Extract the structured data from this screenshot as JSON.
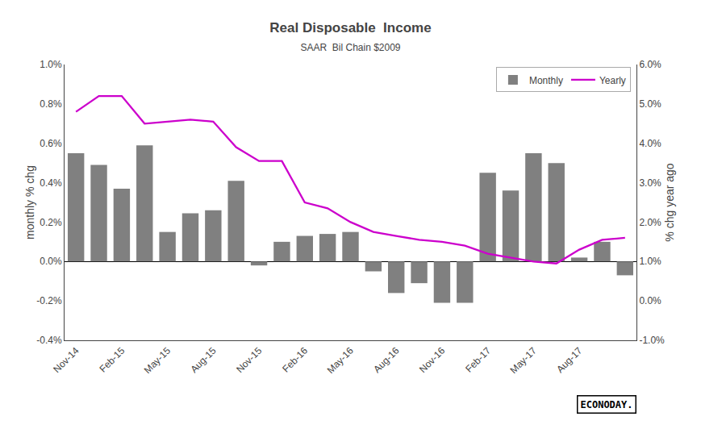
{
  "chart_data": {
    "type": "bar",
    "title": "Real Disposable  Income",
    "subtitle": "SAAR  Bil Chain $2009",
    "ylabel": "monthly % chg",
    "y2label": "% chg year ago",
    "categories": [
      "Nov-14",
      null,
      "Feb-15",
      null,
      "May-15",
      null,
      "Aug-15",
      null,
      "Nov-15",
      null,
      "Feb-16",
      null,
      "May-16",
      null,
      "Aug-16",
      null,
      "Nov-16",
      null,
      "Feb-17",
      null,
      "May-17",
      null,
      "Aug-17",
      null,
      null
    ],
    "series": [
      {
        "name": "Monthly",
        "type": "bar",
        "color": "#808080",
        "values": [
          0.55,
          0.49,
          0.37,
          0.59,
          0.15,
          0.245,
          0.26,
          0.41,
          -0.02,
          0.1,
          0.13,
          0.14,
          0.15,
          -0.05,
          -0.16,
          -0.11,
          -0.21,
          -0.21,
          0.45,
          0.36,
          0.55,
          0.5,
          0.02,
          0.1,
          -0.07
        ]
      },
      {
        "name": "Yearly",
        "type": "line",
        "color": "#CC00CC",
        "axis": "y2",
        "values": [
          4.8,
          5.2,
          5.2,
          4.5,
          4.55,
          4.6,
          4.55,
          3.9,
          3.55,
          3.55,
          2.5,
          2.35,
          2.0,
          1.75,
          1.65,
          1.55,
          1.5,
          1.4,
          1.2,
          1.1,
          1.0,
          0.95,
          1.3,
          1.55,
          1.6
        ]
      }
    ],
    "ylim": [
      -0.4,
      1.0
    ],
    "yticks": [
      {
        "value": -0.4,
        "label": "-0.4%"
      },
      {
        "value": -0.2,
        "label": "-0.2%"
      },
      {
        "value": 0.0,
        "label": "0.0%"
      },
      {
        "value": 0.2,
        "label": "0.2%"
      },
      {
        "value": 0.4,
        "label": "0.4%"
      },
      {
        "value": 0.6,
        "label": "0.6%"
      },
      {
        "value": 0.8,
        "label": "0.8%"
      },
      {
        "value": 1.0,
        "label": "1.0%"
      }
    ],
    "y2lim": [
      -1.0,
      6.0
    ],
    "y2ticks": [
      {
        "value": -1.0,
        "label": "-1.0%"
      },
      {
        "value": 0.0,
        "label": "0.0%"
      },
      {
        "value": 1.0,
        "label": "1.0%"
      },
      {
        "value": 2.0,
        "label": "2.0%"
      },
      {
        "value": 3.0,
        "label": "3.0%"
      },
      {
        "value": 4.0,
        "label": "4.0%"
      },
      {
        "value": 5.0,
        "label": "5.0%"
      },
      {
        "value": 6.0,
        "label": "6.0%"
      }
    ],
    "grid": false,
    "legend": "upper right",
    "annotations": [
      "ECONODAY."
    ]
  }
}
